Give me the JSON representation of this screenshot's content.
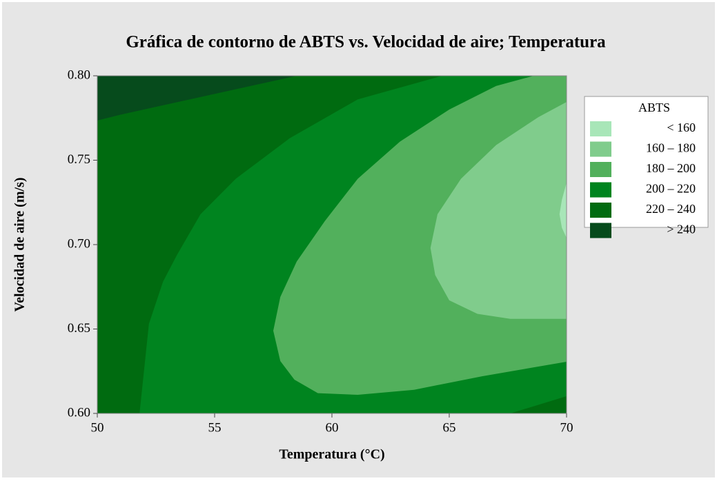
{
  "chart_data": {
    "type": "contour",
    "title": "Gráfica de contorno de ABTS vs. Velocidad de aire; Temperatura",
    "xlabel": "Temperatura (°C)",
    "ylabel": "Velocidad de aire (m/s)",
    "legend_title": "ABTS",
    "legend": "right",
    "xlim": [
      50,
      70
    ],
    "xticks": [
      50,
      55,
      60,
      65,
      70
    ],
    "ylim": [
      0.6,
      0.8
    ],
    "yticks": [
      {
        "value": 0.6,
        "label": "0.60"
      },
      {
        "value": 0.65,
        "label": "0.65"
      },
      {
        "value": 0.7,
        "label": "0.70"
      },
      {
        "value": 0.75,
        "label": "0.75"
      },
      {
        "value": 0.8,
        "label": "0.80"
      }
    ],
    "series": [
      {
        "name": "< 160",
        "color": "#a8e6b8",
        "x": [
          70,
          69.8,
          69.7,
          69.8,
          70
        ],
        "y": [
          0.7367,
          0.7265,
          0.718,
          0.71,
          0.704
        ]
      },
      {
        "name": "160 – 180",
        "color": "#80cc8c",
        "x": [
          70,
          68.8,
          67.0,
          65.5,
          64.5,
          64.2,
          64.4,
          65.0,
          66.2,
          67.6,
          70
        ],
        "y": [
          0.7845,
          0.7755,
          0.759,
          0.739,
          0.718,
          0.698,
          0.682,
          0.667,
          0.659,
          0.656,
          0.656
        ]
      },
      {
        "name": "180 – 200",
        "color": "#52b05c",
        "x": [
          68.6,
          70,
          70,
          66.4,
          63.5,
          61.1,
          59.4,
          58.4,
          57.8,
          57.5,
          57.8,
          58.5,
          59.7,
          61.1,
          62.9,
          65.0,
          67.0
        ],
        "y": [
          0.8,
          0.8,
          0.6306,
          0.622,
          0.614,
          0.611,
          0.612,
          0.62,
          0.631,
          0.649,
          0.669,
          0.69,
          0.714,
          0.739,
          0.761,
          0.78,
          0.794
        ]
      },
      {
        "name": "200 – 220",
        "color": "#00841f",
        "x": [
          51.8,
          52.2,
          52.8,
          53.4,
          54.4,
          55.9,
          58.2,
          61.1,
          64.7,
          70,
          70,
          67.6
        ],
        "y": [
          0.6,
          0.653,
          0.678,
          0.694,
          0.718,
          0.739,
          0.763,
          0.786,
          0.8,
          0.8,
          0.6102,
          0.6
        ]
      },
      {
        "name": "220 – 240",
        "color": "#006b10",
        "x": [
          50,
          50,
          51,
          58.5,
          70,
          70
        ],
        "y": [
          0.6,
          0.7735,
          0.777,
          0.8,
          0.8,
          0.6
        ]
      },
      {
        "name": "> 240",
        "color": "#064b1c",
        "x": [
          50,
          50,
          70,
          70
        ],
        "y": [
          0.6,
          0.8,
          0.8,
          0.6
        ]
      }
    ]
  }
}
